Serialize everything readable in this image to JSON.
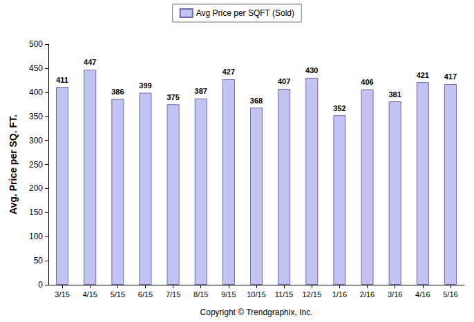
{
  "chart_data": {
    "type": "bar",
    "ylabel": "Avg. Price per SQ. FT.",
    "annotation": "Copyright © Trendgraphix, Inc.",
    "categories": [
      "3/15",
      "4/15",
      "5/15",
      "6/15",
      "7/15",
      "8/15",
      "9/15",
      "10/15",
      "11/15",
      "12/15",
      "1/16",
      "2/16",
      "3/16",
      "4/16",
      "5/16"
    ],
    "series": [
      {
        "name": "Avg Price per SQFT (Sold)",
        "color": "#c4c4f2",
        "values": [
          411,
          447,
          386,
          399,
          375,
          387,
          427,
          368,
          407,
          430,
          352,
          406,
          381,
          421,
          417
        ]
      }
    ],
    "ylim": [
      0,
      500
    ],
    "yticks": [
      0,
      50,
      100,
      150,
      200,
      250,
      300,
      350,
      400,
      450,
      500
    ],
    "grid": false,
    "legend": "top",
    "data_labels": true
  }
}
